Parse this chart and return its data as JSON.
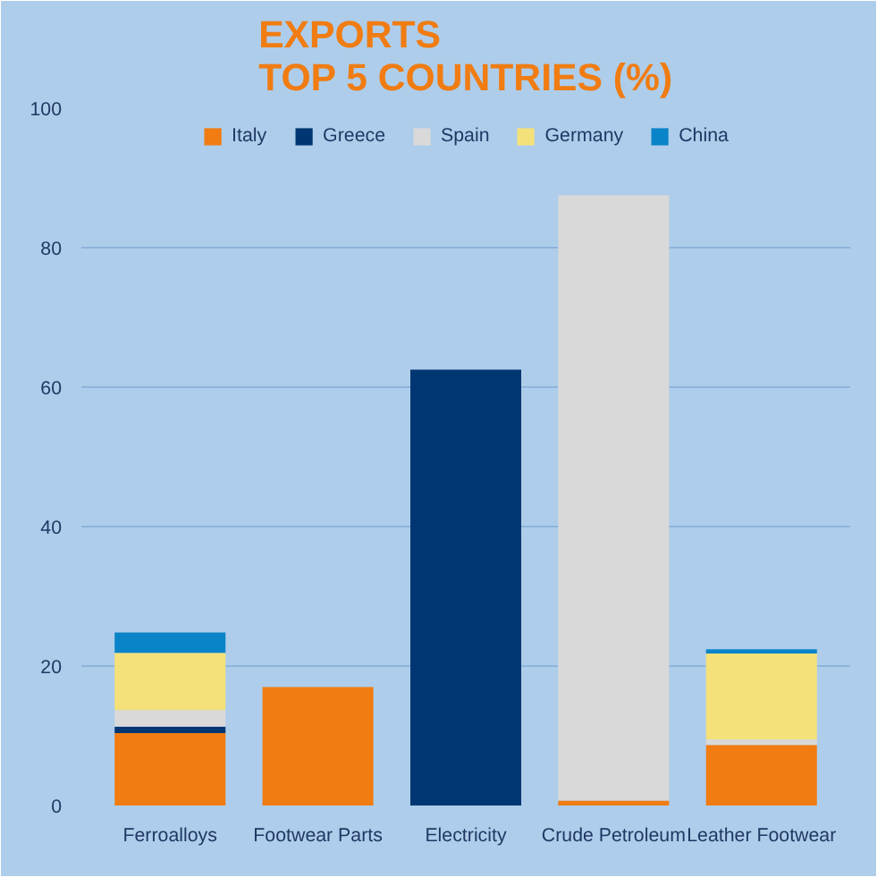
{
  "chart_data": {
    "type": "bar",
    "title": "EXPORTS\nTOP 5 COUNTRIES (%)",
    "stacked": true,
    "categories": [
      "Ferroalloys",
      "Footwear Parts",
      "Electricity",
      "Crude Petroleum",
      "Leather Footwear"
    ],
    "series": [
      {
        "name": "Italy",
        "color": "#f07c12",
        "values": [
          10.4,
          17.0,
          0,
          0.7,
          8.7
        ]
      },
      {
        "name": "Greece",
        "color": "#003672",
        "values": [
          0.9,
          0,
          62.5,
          0,
          0
        ]
      },
      {
        "name": "Spain",
        "color": "#d9d9d9",
        "values": [
          2.4,
          0,
          0,
          86.8,
          0.8
        ]
      },
      {
        "name": "Germany",
        "color": "#f5e17a",
        "values": [
          8.2,
          0,
          0,
          0,
          12.3
        ]
      },
      {
        "name": "China",
        "color": "#0a84c8",
        "values": [
          2.9,
          0,
          0,
          0,
          0.6
        ]
      }
    ],
    "ylim": [
      0,
      100
    ],
    "yticks": [
      0,
      20,
      40,
      60,
      80,
      100
    ],
    "grid": "y",
    "legend": "top"
  }
}
